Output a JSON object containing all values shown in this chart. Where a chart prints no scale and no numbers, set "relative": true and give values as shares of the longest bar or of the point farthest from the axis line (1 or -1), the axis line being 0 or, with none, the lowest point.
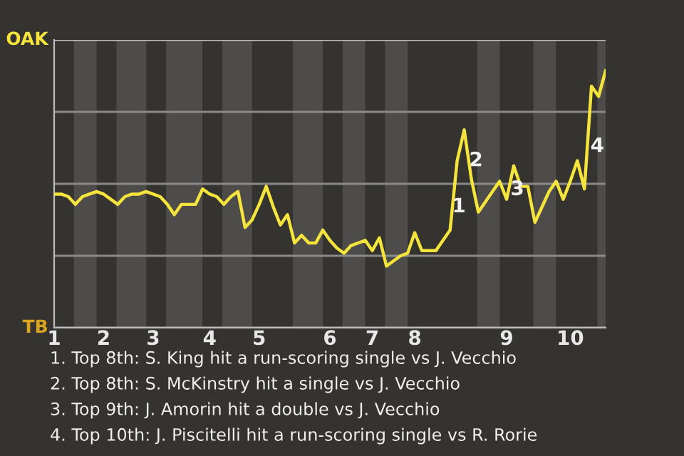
{
  "chart_data": {
    "type": "line",
    "relative": true,
    "categories": [
      "1",
      null,
      null,
      null,
      null,
      null,
      null,
      "2",
      null,
      null,
      null,
      null,
      null,
      null,
      "3",
      null,
      null,
      null,
      null,
      null,
      null,
      null,
      "4",
      null,
      null,
      null,
      null,
      null,
      null,
      "5",
      null,
      null,
      null,
      null,
      null,
      null,
      null,
      null,
      null,
      "6",
      null,
      null,
      null,
      null,
      null,
      "7",
      null,
      null,
      null,
      null,
      null,
      "8",
      null,
      null,
      null,
      null,
      null,
      null,
      null,
      null,
      null,
      null,
      null,
      null,
      "9",
      null,
      null,
      null,
      null,
      null,
      null,
      null,
      null,
      "10",
      null,
      null,
      null,
      null,
      null
    ],
    "series": [
      {
        "color": "#f5e43c",
        "values": [
          0.52,
          0.52,
          0.51,
          0.48,
          0.51,
          0.52,
          0.53,
          0.52,
          0.5,
          0.48,
          0.51,
          0.52,
          0.52,
          0.53,
          0.52,
          0.51,
          0.48,
          0.44,
          0.48,
          0.48,
          0.48,
          0.54,
          0.52,
          0.51,
          0.48,
          0.51,
          0.53,
          0.39,
          0.42,
          0.48,
          0.55,
          0.47,
          0.4,
          0.44,
          0.33,
          0.36,
          0.33,
          0.33,
          0.38,
          0.34,
          0.31,
          0.29,
          0.32,
          0.33,
          0.34,
          0.3,
          0.35,
          0.24,
          0.26,
          0.28,
          0.29,
          0.37,
          0.3,
          0.3,
          0.3,
          0.34,
          0.38,
          0.65,
          0.77,
          0.58,
          0.45,
          0.49,
          0.53,
          0.57,
          0.5,
          0.63,
          0.55,
          0.55,
          0.41,
          0.47,
          0.53,
          0.57,
          0.5,
          0.57,
          0.65,
          0.54,
          0.94,
          0.9,
          1
        ]
      }
    ],
    "grid": false,
    "marker": "none",
    "line_style": "solid",
    "ref_lines": [
      {
        "axis": "y",
        "value": 0,
        "label": "TB",
        "color": "#bdbdbd"
      },
      {
        "axis": "y",
        "value": 0.28,
        "color": "#8a8a8a"
      },
      {
        "axis": "y",
        "value": 0.56,
        "color": "#8a8a8a"
      },
      {
        "axis": "y",
        "value": 0.84,
        "color": "#8a8a8a"
      },
      {
        "axis": "y",
        "value": 1.12,
        "label": "OAK",
        "color": "#bdbdbd"
      }
    ],
    "annotations": [
      "1",
      "2",
      "3",
      "4",
      "1. Top 8th: S. King hit a run-scoring single vs J. Vecchio",
      "2. Top 8th: S. McKinstry hit a single vs J. Vecchio",
      "3. Top 9th: J. Amorin hit a double vs J. Vecchio",
      "4. Top 10th: J. Piscitelli hit a run-scoring single vs R. Rorie"
    ]
  }
}
